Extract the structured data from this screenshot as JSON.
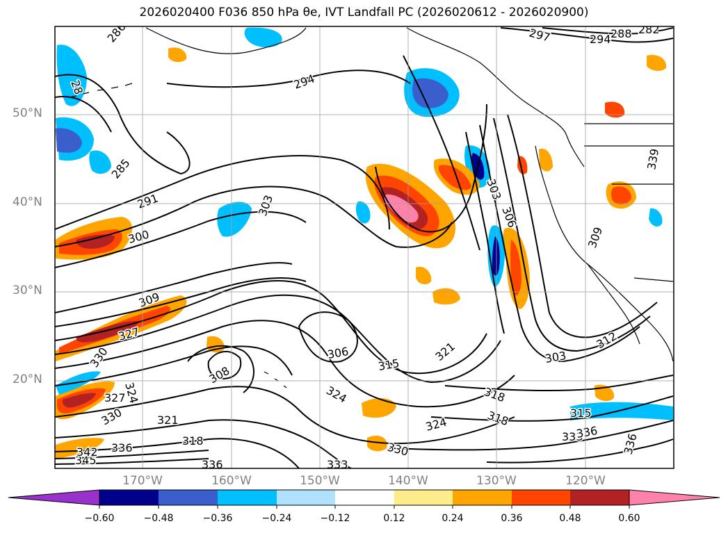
{
  "title": "2026020400 F036 850 hPa θe, IVT Landfall PC (2026020612 - 2026020900)",
  "axes": {
    "lat_labels": [
      "50°N",
      "40°N",
      "30°N",
      "20°N"
    ],
    "lon_labels": [
      "170°W",
      "160°W",
      "150°W",
      "140°W",
      "130°W",
      "120°W"
    ],
    "lat_values": [
      50,
      40,
      30,
      20
    ],
    "lon_values": [
      -170,
      -160,
      -150,
      -140,
      -130,
      -120
    ]
  },
  "contour_labels": [
    "286",
    "294",
    "297",
    "288",
    "294",
    "282",
    "285",
    "291",
    "300",
    "303",
    "309",
    "327",
    "330",
    "324",
    "327",
    "330",
    "321",
    "318",
    "336",
    "333",
    "345",
    "342",
    "336",
    "306",
    "308",
    "315",
    "321",
    "324",
    "318",
    "318",
    "324",
    "330",
    "333",
    "336",
    "303",
    "312",
    "303",
    "306",
    "309",
    "315",
    "336",
    "339",
    "28"
  ],
  "colorbar": {
    "ticks": [
      "−0.60",
      "−0.48",
      "−0.36",
      "−0.24",
      "−0.12",
      "0.12",
      "0.24",
      "0.36",
      "0.48",
      "0.60"
    ],
    "colors": [
      "#9932cc",
      "#00008b",
      "#3a5fcd",
      "#00bfff",
      "#b0e2ff",
      "#ffffff",
      "#ffec8b",
      "#ffa500",
      "#ff4500",
      "#b22222",
      "#ff82ab"
    ]
  }
}
